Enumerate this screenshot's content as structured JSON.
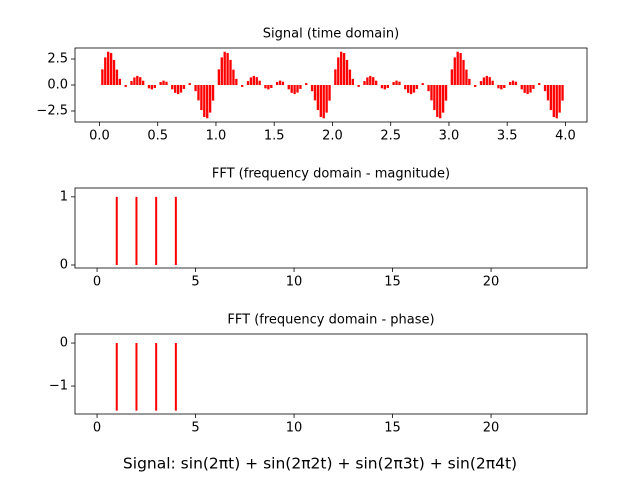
{
  "chart_data": [
    {
      "type": "bar",
      "title": "Signal (time domain)",
      "color": "#ff0000",
      "x": [
        0,
        0.025,
        0.05,
        0.075,
        0.1,
        0.125,
        0.15,
        0.175,
        0.2,
        0.225,
        0.25,
        0.275,
        0.3,
        0.325,
        0.35,
        0.375,
        0.4,
        0.425,
        0.45,
        0.475,
        0.5,
        0.525,
        0.55,
        0.575,
        0.6,
        0.625,
        0.65,
        0.675,
        0.7,
        0.725,
        0.75,
        0.775,
        0.8,
        0.825,
        0.85,
        0.875,
        0.9,
        0.925,
        0.95,
        0.975,
        1,
        1.025,
        1.05,
        1.075,
        1.1,
        1.125,
        1.15,
        1.175,
        1.2,
        1.225,
        1.25,
        1.275,
        1.3,
        1.325,
        1.35,
        1.375,
        1.4,
        1.425,
        1.45,
        1.475,
        1.5,
        1.525,
        1.55,
        1.575,
        1.6,
        1.625,
        1.65,
        1.675,
        1.7,
        1.725,
        1.75,
        1.775,
        1.8,
        1.825,
        1.85,
        1.875,
        1.9,
        1.925,
        1.95,
        1.975,
        2,
        2.025,
        2.05,
        2.075,
        2.1,
        2.125,
        2.15,
        2.175,
        2.2,
        2.225,
        2.25,
        2.275,
        2.3,
        2.325,
        2.35,
        2.375,
        2.4,
        2.425,
        2.45,
        2.475,
        2.5,
        2.525,
        2.55,
        2.575,
        2.6,
        2.625,
        2.65,
        2.675,
        2.7,
        2.725,
        2.75,
        2.775,
        2.8,
        2.825,
        2.85,
        2.875,
        2.9,
        2.925,
        2.95,
        2.975,
        3,
        3.025,
        3.05,
        3.075,
        3.1,
        3.125,
        3.15,
        3.175,
        3.2,
        3.225,
        3.25,
        3.275,
        3.3,
        3.325,
        3.35,
        3.375,
        3.4,
        3.425,
        3.45,
        3.475,
        3.5,
        3.525,
        3.55,
        3.575,
        3.6,
        3.625,
        3.65,
        3.675,
        3.7,
        3.725,
        3.75,
        3.775,
        3.8,
        3.825,
        3.85,
        3.875,
        3.9,
        3.925,
        3.95,
        3.975
      ],
      "values": [
        0,
        1.507,
        2.657,
        3.202,
        3.078,
        2.414,
        1.481,
        0.593,
        0,
        -0.182,
        0,
        0.376,
        0.727,
        0.877,
        0.755,
        0.414,
        0,
        -0.318,
        -0.421,
        -0.286,
        0,
        0.286,
        0.421,
        0.318,
        0,
        -0.414,
        -0.755,
        -0.877,
        -0.727,
        -0.376,
        0,
        0.182,
        0,
        -0.593,
        -1.481,
        -2.414,
        -3.078,
        -3.202,
        -2.657,
        -1.507,
        0,
        1.507,
        2.657,
        3.202,
        3.078,
        2.414,
        1.481,
        0.593,
        0,
        -0.182,
        0,
        0.376,
        0.727,
        0.877,
        0.755,
        0.414,
        0,
        -0.318,
        -0.421,
        -0.286,
        0,
        0.286,
        0.421,
        0.318,
        0,
        -0.414,
        -0.755,
        -0.877,
        -0.727,
        -0.376,
        0,
        0.182,
        0,
        -0.593,
        -1.481,
        -2.414,
        -3.078,
        -3.202,
        -2.657,
        -1.507,
        0,
        1.507,
        2.657,
        3.202,
        3.078,
        2.414,
        1.481,
        0.593,
        0,
        -0.182,
        0,
        0.376,
        0.727,
        0.877,
        0.755,
        0.414,
        0,
        -0.318,
        -0.421,
        -0.286,
        0,
        0.286,
        0.421,
        0.318,
        0,
        -0.414,
        -0.755,
        -0.877,
        -0.727,
        -0.376,
        0,
        0.182,
        0,
        -0.593,
        -1.481,
        -2.414,
        -3.078,
        -3.202,
        -2.657,
        -1.507,
        0,
        1.507,
        2.657,
        3.202,
        3.078,
        2.414,
        1.481,
        0.593,
        0,
        -0.182,
        0,
        0.376,
        0.727,
        0.877,
        0.755,
        0.414,
        0,
        -0.318,
        -0.421,
        -0.286,
        0,
        0.286,
        0.421,
        0.318,
        0,
        -0.414,
        -0.755,
        -0.877,
        -0.727,
        -0.376,
        0,
        0.182,
        0,
        -0.593,
        -1.481,
        -2.414,
        -3.078,
        -3.202,
        -2.657,
        -1.507
      ],
      "xlim": [
        -0.21,
        4.185
      ],
      "ylim": [
        -3.56,
        3.56
      ],
      "xticks": [
        {
          "value": 0,
          "label": "0.0"
        },
        0.5,
        {
          "value": 1,
          "label": "1.0"
        },
        1.5,
        {
          "value": 2,
          "label": "2.0"
        },
        2.5,
        {
          "value": 3,
          "label": "3.0"
        },
        3.5,
        {
          "value": 4,
          "label": "4.0"
        }
      ],
      "yticks": [
        {
          "value": -2.5,
          "label": "−2.5"
        },
        {
          "value": 0,
          "label": "0.0"
        },
        2.5
      ]
    },
    {
      "type": "stem",
      "title": "FFT (frequency domain - magnitude)",
      "color": "#ff0000",
      "x": [
        1,
        2,
        3,
        4
      ],
      "values": [
        1,
        1,
        1,
        1
      ],
      "xlim": [
        -1.12,
        24.87
      ],
      "ylim": [
        -0.044,
        1.13
      ],
      "xticks": [
        0,
        5,
        10,
        15,
        20
      ],
      "yticks": [
        0,
        1
      ]
    },
    {
      "type": "stem",
      "title": "FFT (frequency domain - phase)",
      "color": "#ff0000",
      "x": [
        1,
        2,
        3,
        4
      ],
      "values": [
        -1.571,
        -1.571,
        -1.571,
        -1.571
      ],
      "xlim": [
        -1.12,
        24.87
      ],
      "ylim": [
        -1.65,
        0.21
      ],
      "xticks": [
        0,
        5,
        10,
        15,
        20
      ],
      "yticks": [
        {
          "value": -1,
          "label": "−1"
        },
        0
      ]
    }
  ],
  "caption": "Signal: sin(2πt) + sin(2π2t) + sin(2π3t) + sin(2π4t)"
}
